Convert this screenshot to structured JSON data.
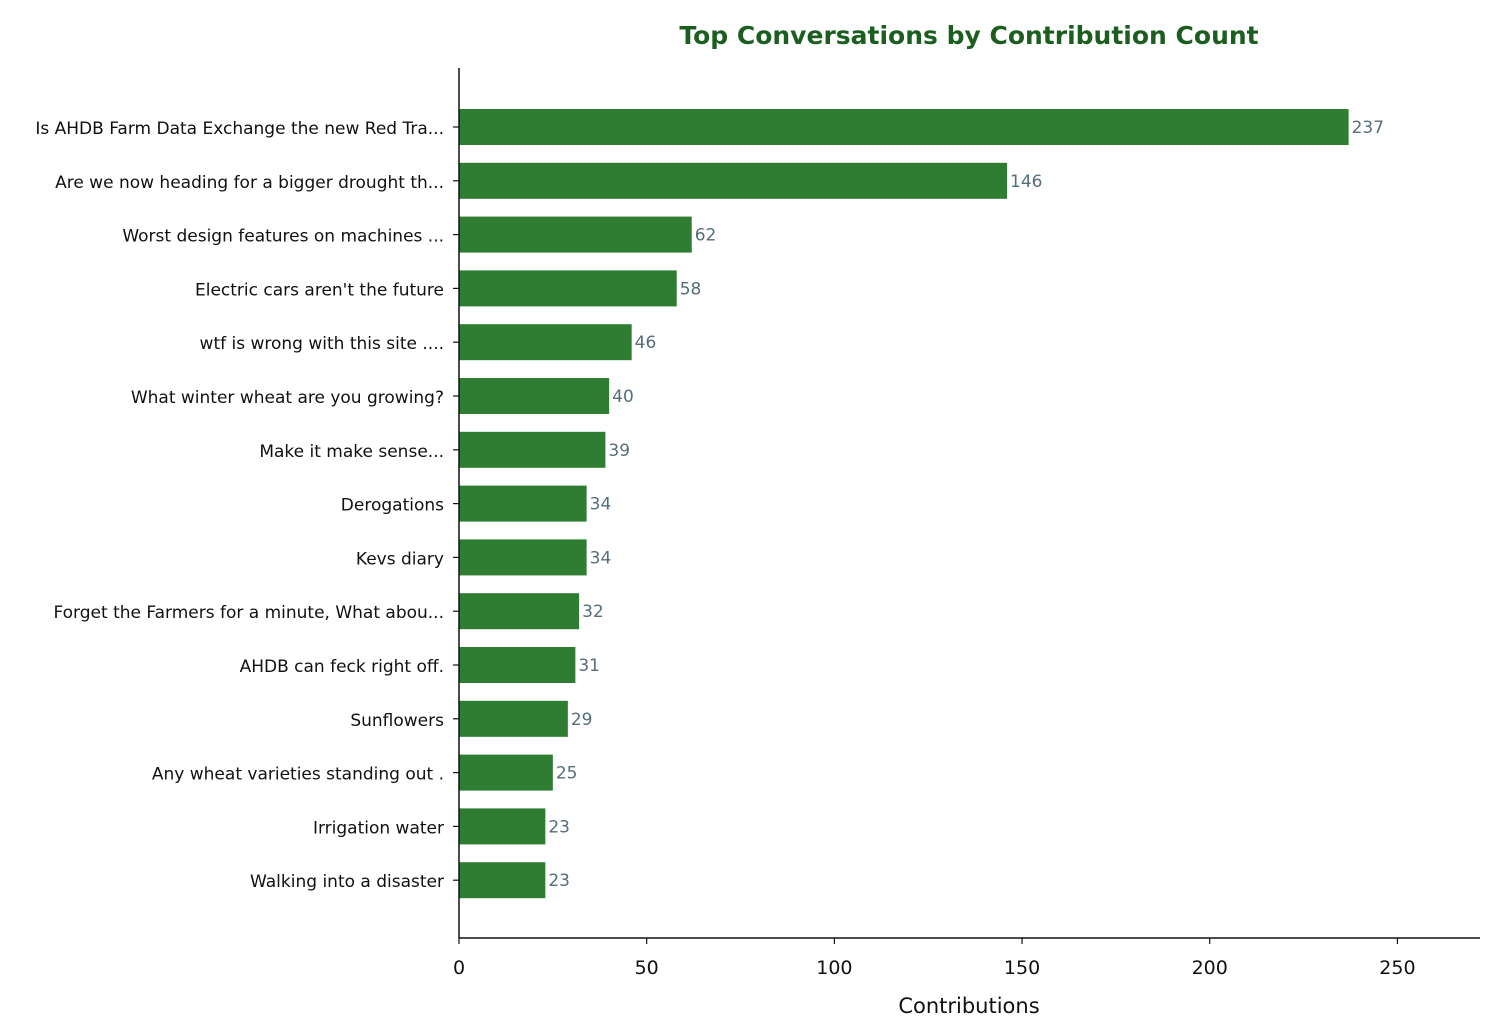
{
  "chart_data": {
    "type": "bar",
    "orientation": "horizontal",
    "title": "Top Conversations by Contribution Count",
    "xlabel": "Contributions",
    "ylabel": "",
    "xlim": [
      0,
      272
    ],
    "xticks": [
      0,
      50,
      100,
      150,
      200,
      250
    ],
    "grid": false,
    "legend": "none",
    "categories": [
      "Is AHDB Farm Data Exchange the new Red Tra...",
      "Are we now heading for a bigger drought th...",
      "Worst design features on machines ...",
      "Electric cars aren't the future",
      "wtf is wrong with this site ....",
      "What winter wheat are you growing?",
      "Make it make sense...",
      "Derogations",
      "Kevs diary",
      "Forget the Farmers for a minute, What abou...",
      "AHDB can feck right off.",
      "Sunflowers",
      "Any wheat varieties standing out .",
      "Irrigation water",
      "Walking into a disaster"
    ],
    "values": [
      237,
      146,
      62,
      58,
      46,
      40,
      39,
      34,
      34,
      32,
      31,
      29,
      25,
      23,
      23
    ]
  },
  "colors": {
    "bar": "#2e7d32",
    "title": "#1b5e20",
    "value_label": "#546e7a",
    "axis": "#111111"
  }
}
